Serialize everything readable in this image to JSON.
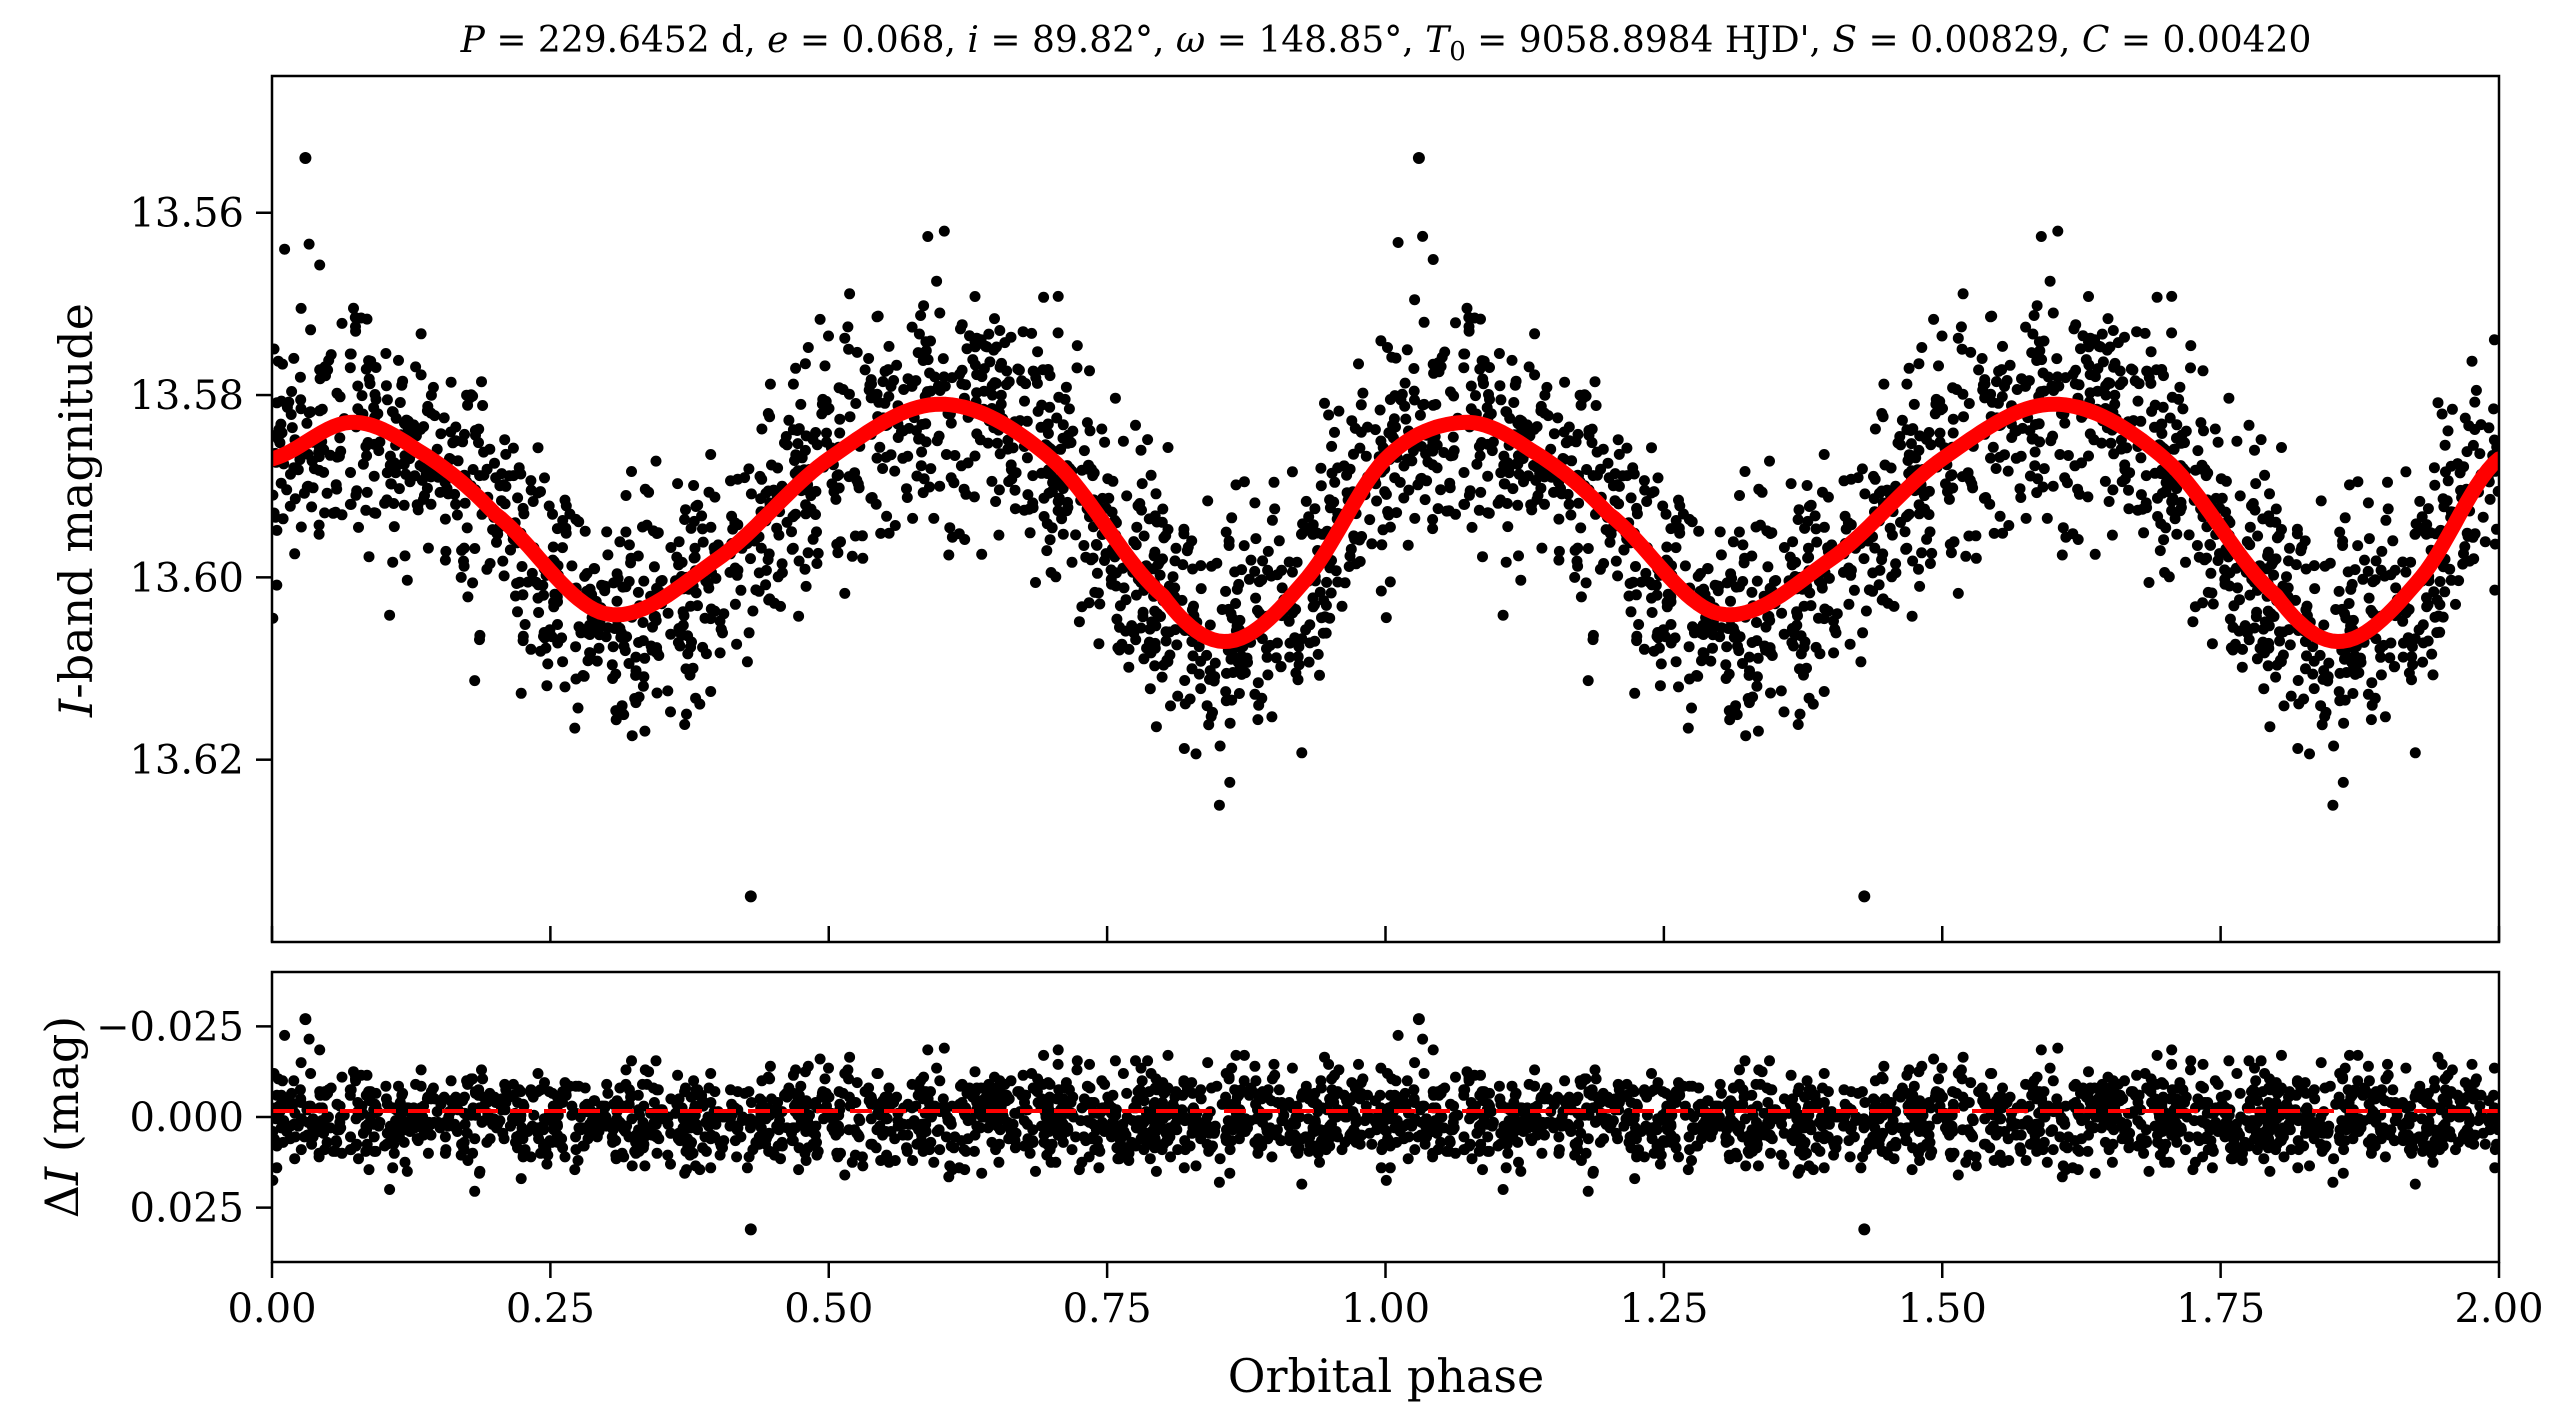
{
  "chart_data": [
    {
      "type": "scatter",
      "panel": "main",
      "title": "P = 229.6452 d, e = 0.068, i = 89.82°, ω = 148.85°, T₀ = 9058.8984 HJD', S = 0.00829, C = 0.00420",
      "ylabel": "I-band magnitude",
      "xlabel": "",
      "xlim": [
        0,
        2
      ],
      "ylim": [
        13.64,
        13.545
      ],
      "y_inverted": true,
      "x_ticks": [
        0,
        0.25,
        0.5,
        0.75,
        1.0,
        1.25,
        1.5,
        1.75,
        2.0
      ],
      "y_ticks": [
        "13.56",
        "13.58",
        "13.60",
        "13.62"
      ],
      "grid": false,
      "legend": "none",
      "series": [
        {
          "kind": "points",
          "color": "#000000",
          "description": "phase-folded photometry, repeated over two cycles",
          "outliers": [
            [
              0.03,
              13.554
            ],
            [
              1.03,
              13.554
            ],
            [
              0.43,
              13.635
            ],
            [
              1.43,
              13.635
            ]
          ]
        },
        {
          "kind": "line",
          "color": "#ff0000",
          "x": [
            0.0,
            0.07,
            0.13,
            0.2,
            0.3,
            0.4,
            0.5,
            0.6,
            0.7,
            0.8,
            0.86,
            0.93,
            1.0,
            1.07,
            1.13,
            1.2,
            1.3,
            1.4,
            1.5,
            1.6,
            1.7,
            1.8,
            1.86,
            1.93,
            2.0
          ],
          "y": [
            13.587,
            13.583,
            13.586,
            13.593,
            13.604,
            13.598,
            13.587,
            13.581,
            13.587,
            13.602,
            13.607,
            13.6,
            13.587,
            13.583,
            13.586,
            13.593,
            13.604,
            13.598,
            13.587,
            13.581,
            13.587,
            13.602,
            13.607,
            13.6,
            13.587
          ]
        }
      ]
    },
    {
      "type": "scatter",
      "panel": "residuals",
      "ylabel": "ΔI (mag)",
      "xlabel": "Orbital phase",
      "xlim": [
        0,
        2
      ],
      "ylim": [
        0.04,
        -0.04
      ],
      "y_inverted": true,
      "x_ticks": [
        "0.00",
        "0.25",
        "0.50",
        "0.75",
        "1.00",
        "1.25",
        "1.50",
        "1.75",
        "2.00"
      ],
      "y_ticks": [
        "−0.025",
        "0.000",
        "0.025"
      ],
      "grid": false,
      "legend": "none",
      "reference_line": {
        "y": 0,
        "style": "dashed",
        "color": "#ff0000"
      },
      "series": [
        {
          "kind": "points",
          "color": "#000000",
          "outliers": [
            [
              0.03,
              -0.027
            ],
            [
              1.03,
              -0.027
            ],
            [
              0.43,
              0.031
            ],
            [
              1.43,
              0.031
            ]
          ]
        }
      ]
    }
  ],
  "colors": {
    "points": "#000000",
    "model": "#ff0000",
    "zero_line": "#ff0000"
  }
}
